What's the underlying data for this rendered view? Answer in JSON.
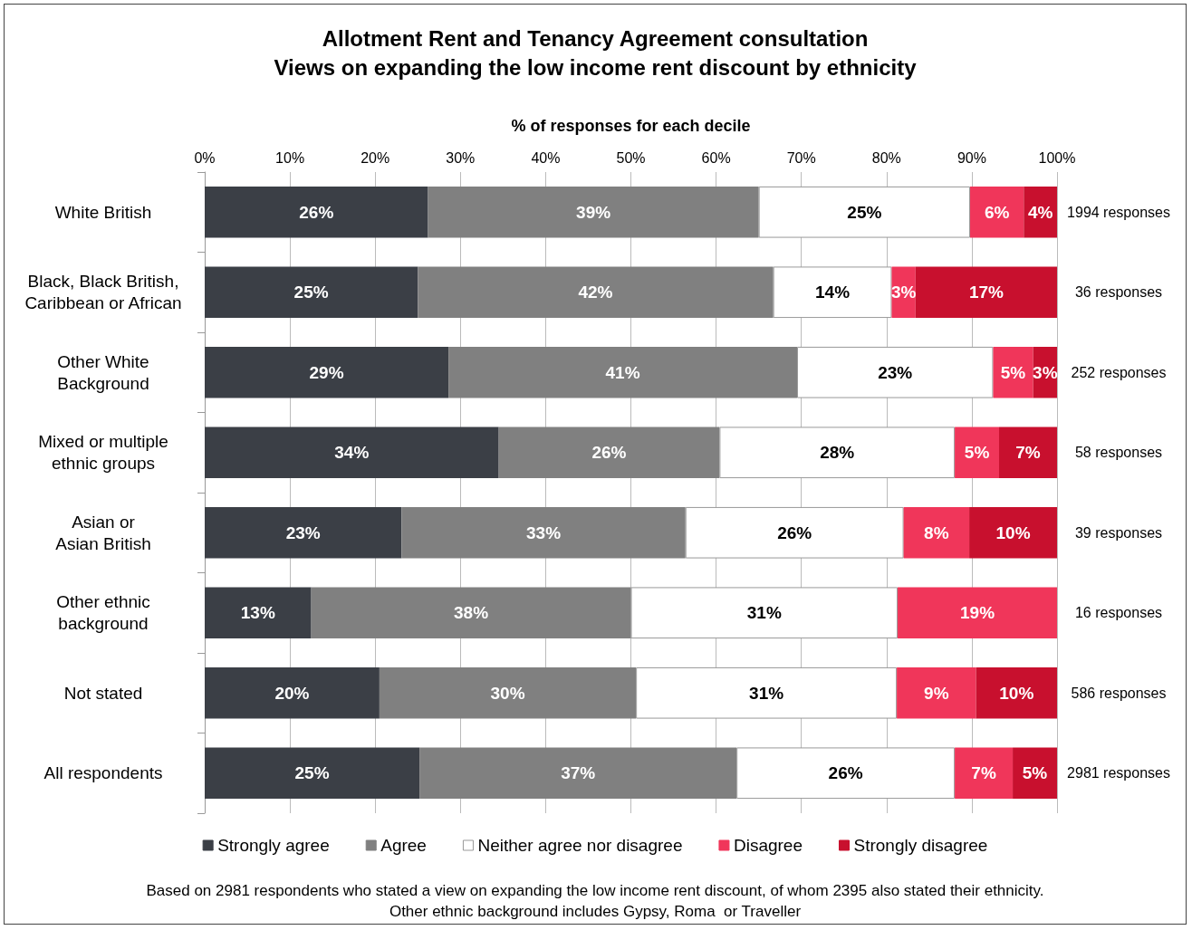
{
  "chart_data": {
    "type": "bar",
    "orientation": "horizontal",
    "stacked": true,
    "title": "Allotment Rent and Tenancy Agreement consultation\nViews on expanding the low income rent discount by ethnicity",
    "xlabel": "% of responses for each decile",
    "categories": [
      "White British",
      "Black, Black British,\nCaribbean or African",
      "Other White\nBackground",
      "Mixed or multiple\nethnic groups",
      "Asian or\nAsian British",
      "Other ethnic\nbackground",
      "Not stated",
      "All respondents"
    ],
    "series": [
      {
        "name": "Strongly agree",
        "color": "#3b3f46",
        "values": [
          26.2,
          25.0,
          28.6,
          34.5,
          23.1,
          12.5,
          20.5,
          25.2
        ],
        "value_labels": [
          "26%",
          "25%",
          "29%",
          "34%",
          "23%",
          "13%",
          "20%",
          "25%"
        ]
      },
      {
        "name": "Agree",
        "color": "#808080",
        "values": [
          38.8,
          41.7,
          40.9,
          25.9,
          33.3,
          37.5,
          30.1,
          37.2
        ],
        "value_labels": [
          "39%",
          "42%",
          "41%",
          "26%",
          "33%",
          "38%",
          "30%",
          "37%"
        ]
      },
      {
        "name": "Neither agree nor disagree",
        "color": "#ffffff",
        "values": [
          24.8,
          13.9,
          23.0,
          27.6,
          25.6,
          31.3,
          30.6,
          25.6
        ],
        "value_labels": [
          "25%",
          "14%",
          "23%",
          "28%",
          "26%",
          "31%",
          "31%",
          "26%"
        ]
      },
      {
        "name": "Disagree",
        "color": "#f0365a",
        "values": [
          6.3,
          2.8,
          4.7,
          5.2,
          7.7,
          18.7,
          9.3,
          6.8
        ],
        "value_labels": [
          "6%",
          "3%",
          "5%",
          "5%",
          "8%",
          "19%",
          "9%",
          "7%"
        ]
      },
      {
        "name": "Strongly disagree",
        "color": "#c8102e",
        "values": [
          3.9,
          16.6,
          2.8,
          6.8,
          10.3,
          null,
          9.5,
          5.2
        ],
        "value_labels": [
          "4%",
          "17%",
          "3%",
          "7%",
          "10%",
          null,
          "10%",
          "5%"
        ]
      }
    ],
    "xlim": [
      0,
      100
    ],
    "xticks": [
      {
        "value": 0,
        "label": "0%"
      },
      {
        "value": 10,
        "label": "10%"
      },
      {
        "value": 20,
        "label": "20%"
      },
      {
        "value": 30,
        "label": "30%"
      },
      {
        "value": 40,
        "label": "40%"
      },
      {
        "value": 50,
        "label": "50%"
      },
      {
        "value": 60,
        "label": "60%"
      },
      {
        "value": 70,
        "label": "70%"
      },
      {
        "value": 80,
        "label": "80%"
      },
      {
        "value": 90,
        "label": "90%"
      },
      {
        "value": 100,
        "label": "100%"
      }
    ],
    "grid": "x",
    "legend": "bottom",
    "annotations": [
      "1994 responses",
      "36 responses",
      "252 responses",
      "58 responses",
      "39 responses",
      "16 responses",
      "586 responses",
      "2981 responses",
      "Based on 2981 respondents who stated a view on expanding the low income rent discount, of whom 2395 also stated their ethnicity.\nOther ethnic background includes Gypsy, Roma  or Traveller"
    ]
  }
}
